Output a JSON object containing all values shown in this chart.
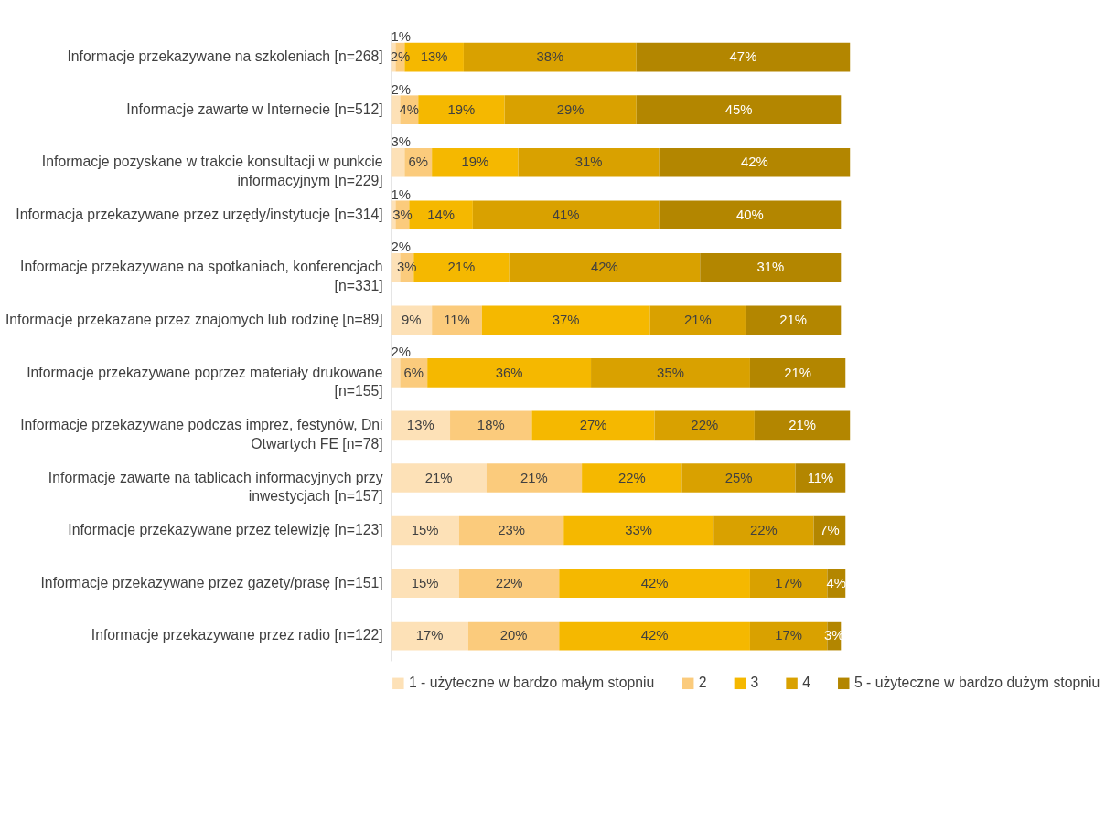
{
  "chart_data": {
    "type": "bar",
    "orientation": "horizontal",
    "stacked": true,
    "legend": "bottom",
    "tick_labels": "y",
    "grid": false,
    "categories": [
      "Informacje przekazywane na szkoleniach [n=268]",
      "Informacje zawarte w Internecie [n=512]",
      "Informacje pozyskane w trakcie konsultacji w punkcie informacyjnym [n=229]",
      "Informacja przekazywane przez urzędy/instytucje [n=314]",
      "Informacje przekazywane na spotkaniach, konferencjach [n=331]",
      "Informacje przekazane przez znajomych lub rodzinę [n=89]",
      "Informacje przekazywane poprzez materiały drukowane [n=155]",
      "Informacje przekazywane podczas imprez, festynów, Dni Otwartych FE [n=78]",
      "Informacje zawarte na tablicach informacyjnych przy inwestycjach [n=157]",
      "Informacje przekazywane przez telewizję [n=123]",
      "Informacje przekazywane przez gazety/prasę [n=151]",
      "Informacje przekazywane przez radio [n=122]"
    ],
    "series": [
      {
        "name": "1 - użyteczne w bardzo małym stopniu",
        "color": "#fde1b7",
        "values": [
          1,
          2,
          3,
          1,
          2,
          9,
          2,
          13,
          21,
          15,
          15,
          17
        ],
        "value_labels": [
          "1%",
          "2%",
          "3%",
          "1%",
          "2%",
          "9%",
          "2%",
          "13%",
          "21%",
          "15%",
          "15%",
          "17%"
        ]
      },
      {
        "name": "2",
        "color": "#fbcb7c",
        "values": [
          2,
          4,
          6,
          3,
          3,
          11,
          6,
          18,
          21,
          23,
          22,
          20
        ],
        "value_labels": [
          "2%",
          "4%",
          "6%",
          "3%",
          "3%",
          "11%",
          "6%",
          "18%",
          "21%",
          "23%",
          "22%",
          "20%"
        ]
      },
      {
        "name": "3",
        "color": "#f5b800",
        "values": [
          13,
          19,
          19,
          14,
          21,
          37,
          36,
          27,
          22,
          33,
          42,
          42
        ],
        "value_labels": [
          "13%",
          "19%",
          "19%",
          "14%",
          "21%",
          "37%",
          "36%",
          "27%",
          "22%",
          "33%",
          "42%",
          "42%"
        ]
      },
      {
        "name": "4",
        "color": "#d9a100",
        "values": [
          38,
          29,
          31,
          41,
          42,
          21,
          35,
          22,
          25,
          22,
          17,
          17
        ],
        "value_labels": [
          "38%",
          "29%",
          "31%",
          "41%",
          "42%",
          "21%",
          "35%",
          "22%",
          "25%",
          "22%",
          "17%",
          "17%"
        ]
      },
      {
        "name": "5 - użyteczne w bardzo dużym stopniu",
        "color": "#b38600",
        "values": [
          47,
          45,
          42,
          40,
          31,
          21,
          21,
          21,
          11,
          7,
          4,
          3
        ],
        "value_labels": [
          "47%",
          "45%",
          "42%",
          "40%",
          "31%",
          "21%",
          "21%",
          "21%",
          "11%",
          "7%",
          "4%",
          "3%"
        ]
      }
    ]
  }
}
